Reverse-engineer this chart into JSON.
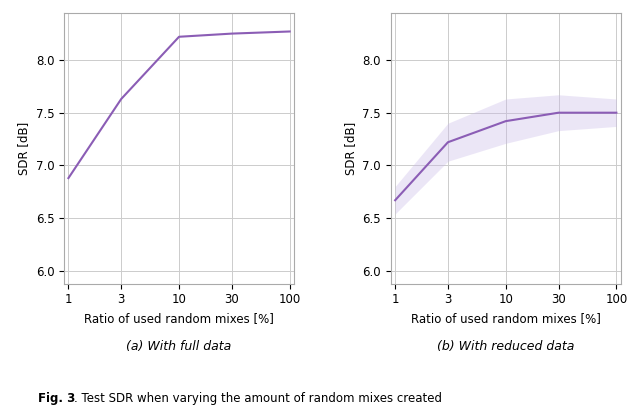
{
  "line_color": "#8B5DB5",
  "fill_color": "#C8B8E8",
  "x_ticks": [
    1,
    3,
    10,
    30,
    100
  ],
  "x_labels": [
    "1",
    "3",
    "10",
    "30",
    "100"
  ],
  "xlabel": "Ratio of used random mixes [%]",
  "ylabel": "SDR [dB]",
  "ylim": [
    5.88,
    8.45
  ],
  "yticks": [
    6.0,
    6.5,
    7.0,
    7.5,
    8.0
  ],
  "subplot_a": {
    "title": "(a) With full data",
    "y_mean": [
      6.88,
      7.63,
      8.22,
      8.25,
      8.27
    ],
    "y_std_upper": [
      6.88,
      7.63,
      8.22,
      8.25,
      8.27
    ],
    "y_std_lower": [
      6.88,
      7.63,
      8.22,
      8.25,
      8.27
    ]
  },
  "subplot_b": {
    "title": "(b) With reduced data",
    "y_mean": [
      6.67,
      7.22,
      7.42,
      7.5,
      7.5
    ],
    "y_std_upper": [
      6.8,
      7.4,
      7.63,
      7.67,
      7.63
    ],
    "y_std_lower": [
      6.54,
      7.04,
      7.21,
      7.33,
      7.37
    ]
  },
  "fig_caption_bold": "Fig. 3",
  "fig_caption_normal": ". Test SDR when varying the amount of random mixes created",
  "background_color": "#ffffff",
  "grid_color": "#cccccc",
  "fill_alpha": 0.35
}
